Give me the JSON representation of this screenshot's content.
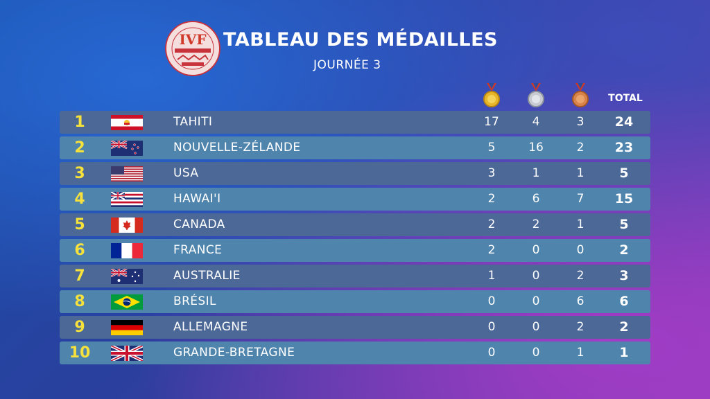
{
  "header": {
    "title": "TABLEAU DES MÉDAILLES",
    "subtitle": "JOURNÉE 3",
    "total_label": "TOTAL",
    "logo_text": "IVF"
  },
  "medals": {
    "gold_icon": "gold-medal-icon",
    "silver_icon": "silver-medal-icon",
    "bronze_icon": "bronze-medal-icon"
  },
  "colors": {
    "rank": "#f6e23a",
    "row_dark": "#4b6897",
    "row_light": "#4f84ad"
  },
  "rows": [
    {
      "rank": "1",
      "country": "TAHITI",
      "flag": "tahiti-flag",
      "gold": "17",
      "silver": "4",
      "bronze": "3",
      "total": "24"
    },
    {
      "rank": "2",
      "country": "NOUVELLE-ZÉLANDE",
      "flag": "new-zealand-flag",
      "gold": "5",
      "silver": "16",
      "bronze": "2",
      "total": "23"
    },
    {
      "rank": "3",
      "country": "USA",
      "flag": "usa-flag",
      "gold": "3",
      "silver": "1",
      "bronze": "1",
      "total": "5"
    },
    {
      "rank": "4",
      "country": "HAWAI'I",
      "flag": "hawaii-flag",
      "gold": "2",
      "silver": "6",
      "bronze": "7",
      "total": "15"
    },
    {
      "rank": "5",
      "country": "CANADA",
      "flag": "canada-flag",
      "gold": "2",
      "silver": "2",
      "bronze": "1",
      "total": "5"
    },
    {
      "rank": "6",
      "country": "FRANCE",
      "flag": "france-flag",
      "gold": "2",
      "silver": "0",
      "bronze": "0",
      "total": "2"
    },
    {
      "rank": "7",
      "country": "AUSTRALIE",
      "flag": "australia-flag",
      "gold": "1",
      "silver": "0",
      "bronze": "2",
      "total": "3"
    },
    {
      "rank": "8",
      "country": "BRÉSIL",
      "flag": "brazil-flag",
      "gold": "0",
      "silver": "0",
      "bronze": "6",
      "total": "6"
    },
    {
      "rank": "9",
      "country": "ALLEMAGNE",
      "flag": "germany-flag",
      "gold": "0",
      "silver": "0",
      "bronze": "2",
      "total": "2"
    },
    {
      "rank": "10",
      "country": "GRANDE-BRETAGNE",
      "flag": "great-britain-flag",
      "gold": "0",
      "silver": "0",
      "bronze": "1",
      "total": "1"
    }
  ]
}
